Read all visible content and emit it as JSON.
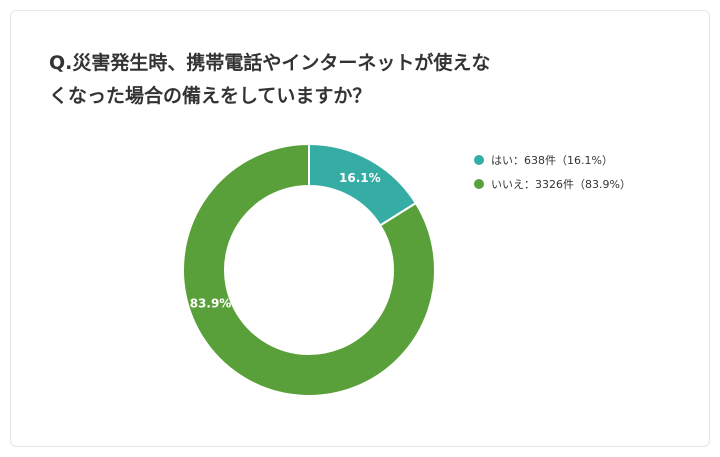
{
  "title_lines": [
    "Q.災害発生時、携帯電話やインターネットが使えな",
    "くなった場合の備えをしていますか？"
  ],
  "chart_data": {
    "type": "pie",
    "donut": true,
    "title": "Q.災害発生時、携帯電話やインターネットが使えなくなった場合の備えをしていますか？",
    "slices": [
      {
        "label": "はい",
        "count": 638,
        "percent": 16.1,
        "color": "#35aca4",
        "data_label": "16.1%",
        "legend_text": "はい：638件（16.1%）"
      },
      {
        "label": "いいえ",
        "count": 3326,
        "percent": 83.9,
        "color": "#5aa03a",
        "data_label": "83.9%",
        "legend_text": "いいえ：3326件（83.9%）"
      }
    ],
    "legend_position": "right"
  }
}
